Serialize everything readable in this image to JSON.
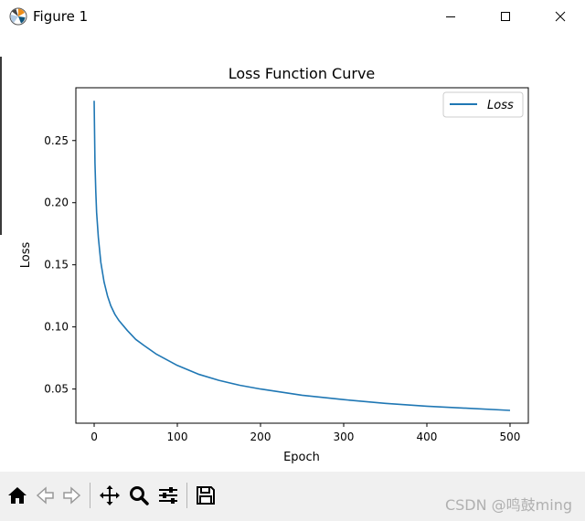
{
  "window": {
    "title": "Figure 1",
    "app_icon": "matplotlib-logo-icon",
    "controls": [
      "minimize-icon",
      "maximize-icon",
      "close-icon"
    ]
  },
  "chart_data": {
    "type": "line",
    "title": "Loss Function Curve",
    "xlabel": "Epoch",
    "ylabel": "Loss",
    "xlim": [
      -22,
      522
    ],
    "ylim": [
      0.0225,
      0.2925
    ],
    "xticks": [
      0,
      100,
      200,
      300,
      400,
      500
    ],
    "yticks": [
      0.05,
      0.1,
      0.15,
      0.2,
      0.25
    ],
    "ytick_labels": [
      "0.05",
      "0.10",
      "0.15",
      "0.20",
      "0.25"
    ],
    "grid": false,
    "legend_position": "top-right",
    "series": [
      {
        "name": "Loss",
        "color": "#1f77b4",
        "x": [
          0,
          1,
          2,
          3,
          5,
          8,
          12,
          16,
          20,
          25,
          30,
          40,
          50,
          60,
          75,
          100,
          125,
          150,
          175,
          200,
          250,
          300,
          350,
          400,
          450,
          500
        ],
        "y": [
          0.282,
          0.232,
          0.209,
          0.192,
          0.172,
          0.152,
          0.136,
          0.125,
          0.117,
          0.11,
          0.105,
          0.097,
          0.09,
          0.085,
          0.078,
          0.069,
          0.062,
          0.057,
          0.053,
          0.05,
          0.045,
          0.0415,
          0.0385,
          0.0362,
          0.0345,
          0.0328
        ]
      }
    ]
  },
  "toolbar": {
    "buttons": [
      "home-icon",
      "back-icon",
      "forward-icon",
      "pan-icon",
      "zoom-icon",
      "configure-subplots-icon",
      "save-icon"
    ]
  },
  "watermark": {
    "text": "CSDN @鸣鼓ming"
  }
}
